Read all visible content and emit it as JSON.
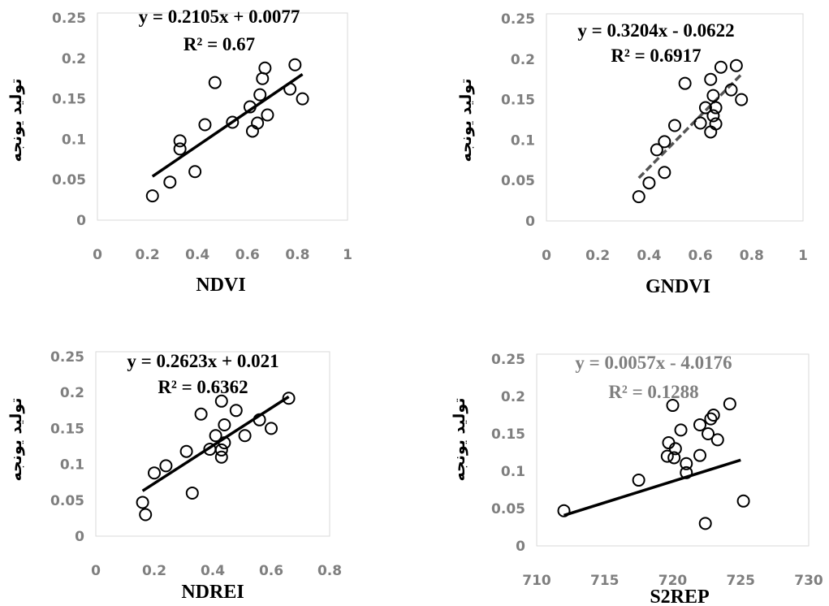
{
  "chart_data": [
    {
      "type": "scatter",
      "xlabel": "NDVI",
      "ylabel": "تولید یونجه",
      "xlim": [
        0,
        1
      ],
      "ylim": [
        0,
        0.25
      ],
      "xticks": [
        "0",
        "0.2",
        "0.4",
        "0.6",
        "0.8",
        "1"
      ],
      "yticks": [
        "0",
        "0.05",
        "0.1",
        "0.15",
        "0.2",
        "0.25"
      ],
      "equation": "y = 0.2105x + 0.0077",
      "r2": "R² = 0.67",
      "trendline": {
        "slope": 0.2105,
        "intercept": 0.0077,
        "x_range": [
          0.22,
          0.82
        ]
      },
      "points": [
        [
          0.22,
          0.03
        ],
        [
          0.29,
          0.047
        ],
        [
          0.33,
          0.088
        ],
        [
          0.33,
          0.098
        ],
        [
          0.39,
          0.06
        ],
        [
          0.43,
          0.118
        ],
        [
          0.47,
          0.17
        ],
        [
          0.54,
          0.121
        ],
        [
          0.61,
          0.14
        ],
        [
          0.62,
          0.11
        ],
        [
          0.64,
          0.12
        ],
        [
          0.65,
          0.155
        ],
        [
          0.66,
          0.175
        ],
        [
          0.67,
          0.188
        ],
        [
          0.68,
          0.13
        ],
        [
          0.77,
          0.162
        ],
        [
          0.79,
          0.192
        ],
        [
          0.82,
          0.15
        ]
      ],
      "grid": false
    },
    {
      "type": "scatter",
      "xlabel": "GNDVI",
      "ylabel": "تولید یونجه",
      "xlim": [
        0,
        1
      ],
      "ylim": [
        0,
        0.25
      ],
      "xticks": [
        "0",
        "0.2",
        "0.4",
        "0.6",
        "0.8",
        "1"
      ],
      "yticks": [
        "0",
        "0.05",
        "0.1",
        "0.15",
        "0.2",
        "0.25"
      ],
      "equation": "y = 0.3204x - 0.0622",
      "r2": "R² = 0.6917",
      "trendline": {
        "slope": 0.3204,
        "intercept": -0.0622,
        "x_range": [
          0.36,
          0.76
        ],
        "style": "dashed"
      },
      "points": [
        [
          0.36,
          0.03
        ],
        [
          0.4,
          0.047
        ],
        [
          0.43,
          0.088
        ],
        [
          0.46,
          0.06
        ],
        [
          0.46,
          0.098
        ],
        [
          0.5,
          0.118
        ],
        [
          0.54,
          0.17
        ],
        [
          0.6,
          0.121
        ],
        [
          0.62,
          0.14
        ],
        [
          0.64,
          0.11
        ],
        [
          0.64,
          0.175
        ],
        [
          0.65,
          0.13
        ],
        [
          0.65,
          0.155
        ],
        [
          0.66,
          0.14
        ],
        [
          0.66,
          0.12
        ],
        [
          0.68,
          0.19
        ],
        [
          0.72,
          0.162
        ],
        [
          0.74,
          0.192
        ],
        [
          0.76,
          0.15
        ]
      ],
      "grid": false
    },
    {
      "type": "scatter",
      "xlabel": "NDREI",
      "ylabel": "تولید یونجه",
      "xlim": [
        0,
        0.8
      ],
      "ylim": [
        0,
        0.25
      ],
      "xticks": [
        "0",
        "0.2",
        "0.4",
        "0.6",
        "0.8"
      ],
      "yticks": [
        "0",
        "0.05",
        "0.1",
        "0.15",
        "0.2",
        "0.25"
      ],
      "equation": "y = 0.2623x + 0.021",
      "r2": "R² = 0.6362",
      "trendline": {
        "slope": 0.2623,
        "intercept": 0.021,
        "x_range": [
          0.16,
          0.66
        ]
      },
      "points": [
        [
          0.16,
          0.047
        ],
        [
          0.17,
          0.03
        ],
        [
          0.2,
          0.088
        ],
        [
          0.24,
          0.098
        ],
        [
          0.31,
          0.118
        ],
        [
          0.33,
          0.06
        ],
        [
          0.36,
          0.17
        ],
        [
          0.39,
          0.121
        ],
        [
          0.41,
          0.14
        ],
        [
          0.43,
          0.11
        ],
        [
          0.43,
          0.12
        ],
        [
          0.43,
          0.188
        ],
        [
          0.44,
          0.13
        ],
        [
          0.44,
          0.155
        ],
        [
          0.48,
          0.175
        ],
        [
          0.51,
          0.14
        ],
        [
          0.56,
          0.162
        ],
        [
          0.6,
          0.15
        ],
        [
          0.66,
          0.192
        ]
      ],
      "grid": false
    },
    {
      "type": "scatter",
      "xlabel": "S2REP",
      "ylabel": "تولید یونجه",
      "xlim": [
        710,
        730
      ],
      "ylim": [
        0,
        0.25
      ],
      "xticks": [
        "710",
        "715",
        "720",
        "725",
        "730"
      ],
      "yticks": [
        "0",
        "0.05",
        "0.1",
        "0.15",
        "0.2",
        "0.25"
      ],
      "equation": "y = 0.0057x - 4.0176",
      "r2": "R² = 0.1288",
      "trendline": {
        "slope": 0.0057,
        "intercept": -4.0176,
        "x_range": [
          712,
          725
        ]
      },
      "points": [
        [
          712,
          0.047
        ],
        [
          717.5,
          0.088
        ],
        [
          719.6,
          0.12
        ],
        [
          719.7,
          0.138
        ],
        [
          720,
          0.188
        ],
        [
          720.1,
          0.118
        ],
        [
          720.2,
          0.13
        ],
        [
          720.6,
          0.155
        ],
        [
          721,
          0.098
        ],
        [
          721,
          0.11
        ],
        [
          722,
          0.121
        ],
        [
          722,
          0.162
        ],
        [
          722.4,
          0.03
        ],
        [
          722.6,
          0.15
        ],
        [
          722.8,
          0.17
        ],
        [
          723,
          0.175
        ],
        [
          723.3,
          0.142
        ],
        [
          724.2,
          0.19
        ],
        [
          725.2,
          0.06
        ]
      ],
      "grid": false
    }
  ]
}
